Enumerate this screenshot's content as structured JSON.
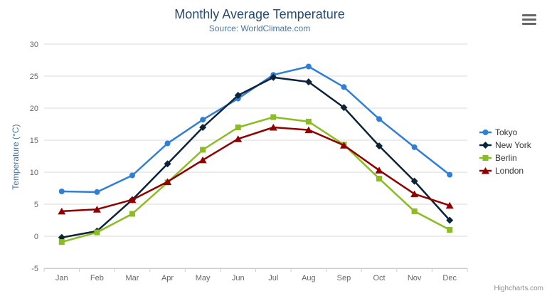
{
  "chart_data": {
    "type": "line",
    "title": "Monthly Average Temperature",
    "subtitle": "Source: WorldClimate.com",
    "xlabel": "",
    "ylabel": "Temperature (°C)",
    "categories": [
      "Jan",
      "Feb",
      "Mar",
      "Apr",
      "May",
      "Jun",
      "Jul",
      "Aug",
      "Sep",
      "Oct",
      "Nov",
      "Dec"
    ],
    "ylim": [
      -5,
      30
    ],
    "ytick_interval": 5,
    "ytick_labels": [
      "-5",
      "0",
      "5",
      "10",
      "15",
      "20",
      "25",
      "30"
    ],
    "grid": true,
    "legend_position": "right",
    "series": [
      {
        "name": "Tokyo",
        "marker": "circle",
        "color": "#2f7ed8",
        "values": [
          7.0,
          6.9,
          9.5,
          14.5,
          18.2,
          21.5,
          25.2,
          26.5,
          23.3,
          18.3,
          13.9,
          9.6
        ]
      },
      {
        "name": "New York",
        "marker": "diamond",
        "color": "#0d233a",
        "values": [
          -0.2,
          0.8,
          5.7,
          11.3,
          17.0,
          22.0,
          24.8,
          24.1,
          20.1,
          14.1,
          8.6,
          2.5
        ]
      },
      {
        "name": "Berlin",
        "marker": "square",
        "color": "#8bbc21",
        "values": [
          -0.9,
          0.6,
          3.5,
          8.4,
          13.5,
          17.0,
          18.6,
          17.9,
          14.3,
          9.0,
          3.9,
          1.0
        ]
      },
      {
        "name": "London",
        "marker": "triangle",
        "color": "#910000",
        "values": [
          3.9,
          4.2,
          5.7,
          8.5,
          11.9,
          15.2,
          17.0,
          16.6,
          14.2,
          10.3,
          6.6,
          4.8
        ]
      }
    ],
    "credits": "Highcharts.com"
  },
  "colors": {
    "title": "#274b6d",
    "subtitle": "#4d759e",
    "axis_label": "#666666",
    "axis_line": "#c0d0e0",
    "grid": "#d8d8d8",
    "legend_text": "#333333",
    "credits": "#909090",
    "menu_icon": "#666666"
  }
}
